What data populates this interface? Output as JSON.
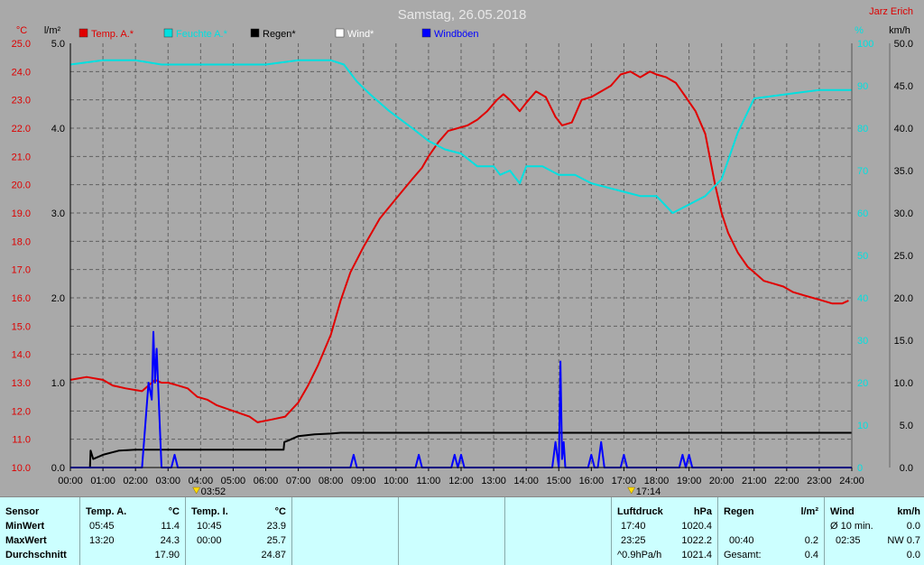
{
  "header": {
    "title": "Samstag, 26.05.2018",
    "author": "Jarz Erich",
    "unit_temp": "°C",
    "unit_rain": "l/m²",
    "unit_humidity": "%",
    "unit_wind": "km/h"
  },
  "legend": [
    {
      "label": "Temp. A.*",
      "color": "#e00000"
    },
    {
      "label": "Feuchte A.*",
      "color": "#00e0e0"
    },
    {
      "label": "Regen*",
      "color": "#000000"
    },
    {
      "label": "Wind*",
      "color": "#ffffff"
    },
    {
      "label": "Windböen",
      "color": "#0000ff"
    }
  ],
  "sun_marks": {
    "sunrise": "03:52",
    "sunset": "17:14",
    "sunrise_h": 3.87,
    "sunset_h": 17.23
  },
  "chart_data": {
    "type": "line",
    "title": "Samstag, 26.05.2018",
    "x_ticks": [
      "00:00",
      "01:00",
      "02:00",
      "03:00",
      "04:00",
      "05:00",
      "06:00",
      "07:00",
      "08:00",
      "09:00",
      "10:00",
      "11:00",
      "12:00",
      "13:00",
      "14:00",
      "15:00",
      "16:00",
      "17:00",
      "18:00",
      "19:00",
      "20:00",
      "21:00",
      "22:00",
      "23:00",
      "24:00"
    ],
    "xlim": [
      0,
      24
    ],
    "grid": true,
    "legend_position": "top",
    "axes": {
      "temp": {
        "ylim": [
          10,
          25
        ],
        "ticks": [
          "10.0",
          "11.0",
          "12.0",
          "13.0",
          "14.0",
          "15.0",
          "16.0",
          "17.0",
          "18.0",
          "19.0",
          "20.0",
          "21.0",
          "22.0",
          "23.0",
          "24.0",
          "25.0"
        ]
      },
      "rain": {
        "ylim": [
          0,
          5
        ],
        "ticks": [
          "0.0",
          "1.0",
          "2.0",
          "3.0",
          "4.0",
          "5.0"
        ]
      },
      "humidity": {
        "ylim": [
          0,
          100
        ],
        "ticks": [
          "0",
          "10",
          "20",
          "30",
          "40",
          "50",
          "60",
          "70",
          "80",
          "90",
          "100"
        ]
      },
      "wind": {
        "ylim": [
          0,
          50
        ],
        "ticks": [
          "0.0",
          "5.0",
          "10.0",
          "15.0",
          "20.0",
          "25.0",
          "30.0",
          "35.0",
          "40.0",
          "45.0",
          "50.0"
        ]
      }
    },
    "series": [
      {
        "name": "Temp. A.*",
        "axis": "temp",
        "color": "#e00000",
        "x": [
          0,
          0.5,
          1.0,
          1.3,
          1.7,
          2.2,
          2.5,
          2.6,
          2.8,
          3.0,
          3.3,
          3.6,
          3.9,
          4.2,
          4.5,
          5.0,
          5.5,
          5.75,
          6.2,
          6.6,
          7.0,
          7.3,
          7.6,
          8.0,
          8.3,
          8.6,
          9.0,
          9.5,
          10.0,
          10.5,
          10.8,
          11.0,
          11.3,
          11.6,
          11.9,
          12.2,
          12.5,
          12.8,
          13.1,
          13.3,
          13.5,
          13.8,
          14.0,
          14.3,
          14.6,
          14.9,
          15.1,
          15.4,
          15.7,
          16.0,
          16.3,
          16.6,
          16.9,
          17.2,
          17.5,
          17.8,
          18.0,
          18.3,
          18.6,
          18.9,
          19.2,
          19.5,
          19.8,
          20.0,
          20.2,
          20.5,
          20.8,
          21.0,
          21.3,
          21.6,
          21.9,
          22.2,
          22.5,
          22.8,
          23.1,
          23.4,
          23.7,
          23.9
        ],
        "y": [
          13.1,
          13.2,
          13.1,
          12.9,
          12.8,
          12.7,
          13.0,
          13.1,
          13.0,
          13.0,
          12.9,
          12.8,
          12.5,
          12.4,
          12.2,
          12.0,
          11.8,
          11.6,
          11.7,
          11.8,
          12.3,
          12.9,
          13.6,
          14.7,
          15.9,
          16.9,
          17.8,
          18.8,
          19.5,
          20.2,
          20.6,
          21.0,
          21.5,
          21.9,
          22.0,
          22.1,
          22.3,
          22.6,
          23.0,
          23.2,
          23.0,
          22.6,
          22.9,
          23.3,
          23.1,
          22.4,
          22.1,
          22.2,
          23.0,
          23.1,
          23.3,
          23.5,
          23.9,
          24.0,
          23.8,
          24.0,
          23.9,
          23.8,
          23.6,
          23.1,
          22.6,
          21.8,
          20.0,
          19.0,
          18.3,
          17.6,
          17.1,
          16.9,
          16.6,
          16.5,
          16.4,
          16.2,
          16.1,
          16.0,
          15.9,
          15.8,
          15.8,
          15.9
        ]
      },
      {
        "name": "Feuchte A.*",
        "axis": "humidity",
        "color": "#00e0e0",
        "x": [
          0,
          1,
          2,
          2.8,
          3,
          4,
          5,
          6,
          7,
          7.5,
          8.0,
          8.4,
          8.8,
          9.2,
          9.8,
          10.5,
          11,
          11.5,
          12,
          12.5,
          13,
          13.2,
          13.5,
          13.8,
          14,
          14.5,
          15,
          15.3,
          15.5,
          16,
          16.5,
          17,
          17.5,
          18,
          18.5,
          19,
          19.5,
          20,
          20.5,
          21,
          22,
          23,
          24
        ],
        "y": [
          95,
          96,
          96,
          95,
          95,
          95,
          95,
          95,
          96,
          96,
          96,
          95,
          91,
          88,
          84,
          80,
          77,
          75,
          74,
          71,
          71,
          69,
          70,
          67,
          71,
          71,
          69,
          69,
          69,
          67,
          66,
          65,
          64,
          64,
          60,
          62,
          64,
          68,
          79,
          87,
          88,
          89,
          89
        ]
      },
      {
        "name": "Regen*",
        "axis": "rain",
        "color": "#000000",
        "x": [
          0,
          0.6,
          0.62,
          0.7,
          1.0,
          1.5,
          2.0,
          3.0,
          4.0,
          5.0,
          6.0,
          6.55,
          6.57,
          6.7,
          7.0,
          7.5,
          8.0,
          8.3,
          9.0,
          12.0,
          18.0,
          24.0
        ],
        "y": [
          0,
          0,
          0.2,
          0.1,
          0.15,
          0.2,
          0.21,
          0.21,
          0.21,
          0.21,
          0.21,
          0.21,
          0.3,
          0.32,
          0.37,
          0.39,
          0.4,
          0.41,
          0.41,
          0.41,
          0.41,
          0.41
        ]
      },
      {
        "name": "Windböen",
        "axis": "wind",
        "color": "#0000ff",
        "x": [
          0,
          2.2,
          2.4,
          2.5,
          2.55,
          2.6,
          2.65,
          2.8,
          3.1,
          3.2,
          3.3,
          8.6,
          8.7,
          8.8,
          10.6,
          10.7,
          10.8,
          11.7,
          11.8,
          11.9,
          12.0,
          12.1,
          12.2,
          14.8,
          14.9,
          15.0,
          15.05,
          15.1,
          15.15,
          15.2,
          15.3,
          15.5,
          15.9,
          16.0,
          16.1,
          16.2,
          16.3,
          16.4,
          16.5,
          16.6,
          16.9,
          17.0,
          17.1,
          18.7,
          18.8,
          18.9,
          19.0,
          19.1,
          19.2,
          24
        ],
        "y": [
          0,
          0,
          10,
          8,
          16,
          10,
          14,
          0,
          0,
          1.5,
          0,
          0,
          1.5,
          0,
          0,
          1.5,
          0,
          0,
          1.5,
          0,
          1.5,
          0,
          0,
          0,
          3,
          0,
          12.5,
          1,
          3,
          0,
          0,
          0,
          0,
          1.5,
          0,
          0,
          3,
          0,
          0,
          0,
          0,
          1.5,
          0,
          0,
          1.5,
          0,
          1.5,
          0,
          0,
          0
        ]
      }
    ]
  },
  "summary": {
    "sensor": {
      "header": "Sensor",
      "rows": [
        "MinWert",
        "MaxWert",
        "Durchschnitt"
      ]
    },
    "temp_a": {
      "header": "Temp. A.",
      "unit": "°C",
      "rows": [
        [
          "05:45",
          "11.4"
        ],
        [
          "13:20",
          "24.3"
        ],
        [
          "",
          "17.90"
        ]
      ]
    },
    "temp_i": {
      "header": "Temp. I.",
      "unit": "°C",
      "rows": [
        [
          "10:45",
          "23.9"
        ],
        [
          "00:00",
          "25.7"
        ],
        [
          "",
          "24.87"
        ]
      ]
    },
    "pressure": {
      "header": "Luftdruck",
      "unit": "hPa",
      "rows": [
        [
          "17:40",
          "1020.4"
        ],
        [
          "23:25",
          "1022.2"
        ],
        [
          "^0.9hPa/h",
          "1021.4"
        ]
      ]
    },
    "rain": {
      "header": "Regen",
      "unit": "l/m²",
      "rows": [
        [
          "",
          ""
        ],
        [
          "00:40",
          "0.2"
        ],
        [
          "Gesamt:",
          "0.4"
        ]
      ]
    },
    "wind": {
      "header": "Wind",
      "unit": "km/h",
      "rows": [
        [
          "Ø 10 min.",
          "0.0"
        ],
        [
          "02:35",
          "NW 0.7"
        ],
        [
          "",
          "0.0"
        ]
      ]
    }
  }
}
